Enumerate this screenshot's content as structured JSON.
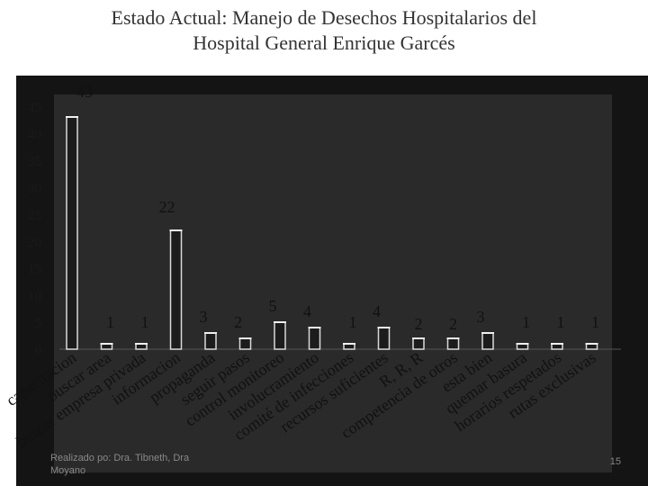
{
  "slide": {
    "title_line1": "Estado Actual: Manejo de Desechos Hospitalarios del",
    "title_line2": "Hospital General Enrique Garcés",
    "footer_line1": "Realizado po: Dra. Tibneth, Dra",
    "footer_line2": "Moyano",
    "page_number": "15"
  },
  "chart_data": {
    "type": "bar",
    "title": "",
    "xlabel": "",
    "ylabel": "",
    "ylim": [
      0,
      45
    ],
    "yticks": [
      0,
      5,
      10,
      15,
      20,
      25,
      30,
      35,
      40,
      45
    ],
    "grid": false,
    "categories": [
      "capacitacion",
      "buscar area",
      "buscar empresa privada",
      "informacion",
      "propaganda",
      "seguir pasos",
      "control monitoreo",
      "involucramiento",
      "comité de infecciones",
      "recursos suficientes",
      "R, R, R",
      "competencia de otros",
      "esta bien",
      "quemar basura",
      "horarios respetados",
      "rutas exclusivas"
    ],
    "values": [
      43,
      1,
      1,
      22,
      3,
      2,
      5,
      4,
      1,
      4,
      2,
      2,
      3,
      1,
      1,
      1
    ],
    "data_labels": [
      "43",
      "1",
      "1",
      "22",
      "3",
      "2",
      "5",
      "4",
      "1",
      "4",
      "2",
      "2",
      "3",
      "1",
      "1",
      "1"
    ],
    "colors": {
      "bar_fill": "#1c1c1c",
      "bar_edge": "#d9d9d9",
      "text": "#111111",
      "axis_text": "#1a1a1a"
    }
  }
}
